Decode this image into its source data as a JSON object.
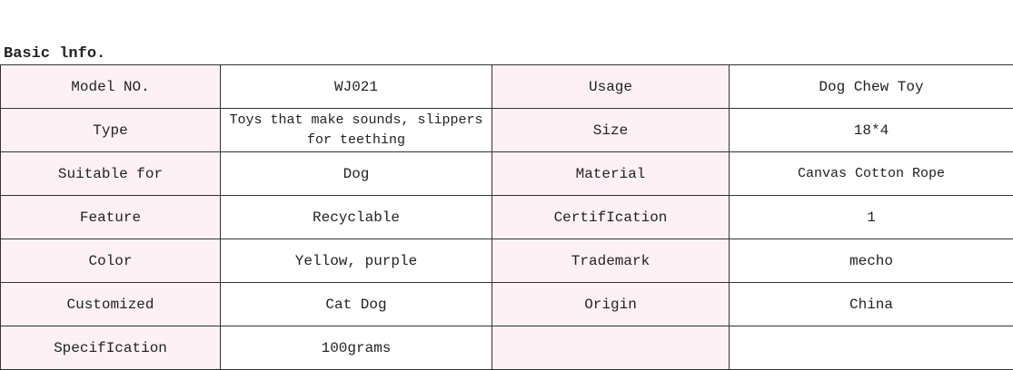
{
  "title": "Basic lnfo.",
  "rows": [
    [
      "Model NO.",
      "WJ021",
      "Usage",
      "Dog Chew Toy"
    ],
    [
      "Type",
      "Toys that make sounds, slippers for teething",
      "Size",
      "18*4"
    ],
    [
      "Suitable for",
      "Dog",
      "Material",
      "Canvas Cotton Rope"
    ],
    [
      "Feature",
      "Recyclable",
      "CertifIcation",
      "1"
    ],
    [
      "Color",
      "Yellow, purple",
      "Trademark",
      "mecho"
    ],
    [
      "Customized",
      "Cat Dog",
      "Origin",
      "China"
    ],
    [
      "SpecifIcation",
      "100grams",
      "",
      ""
    ]
  ],
  "colors": {
    "label_bg": "#fdf1f5",
    "border": "#333333"
  }
}
